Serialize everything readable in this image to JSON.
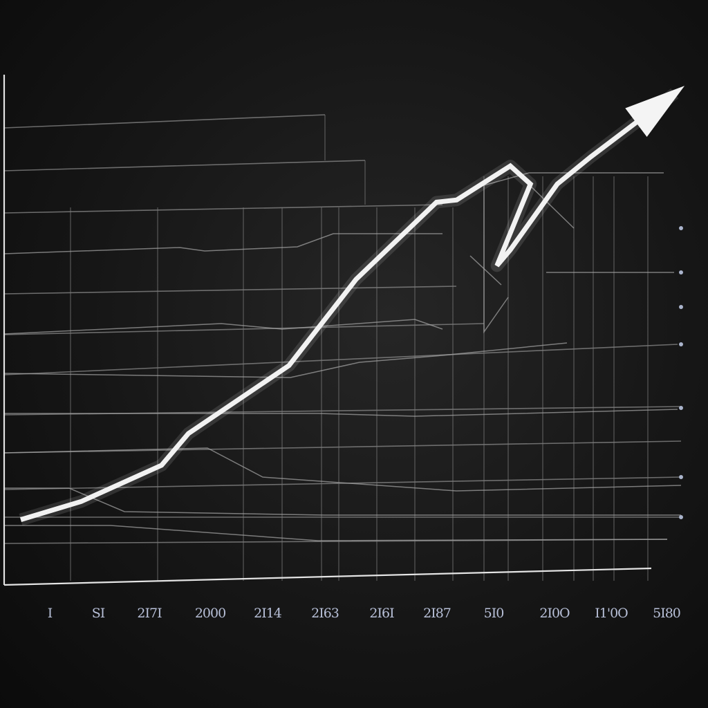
{
  "chart_data": {
    "type": "line",
    "title": "",
    "xlabel": "",
    "ylabel": "",
    "grid": true,
    "legend": "none",
    "x_tick_labels": [
      "I",
      "SI",
      "2I7I",
      "2000",
      "2I14",
      "2I63",
      "2I6I",
      "2I87",
      "5I0",
      "2I0O",
      "I1'0O",
      "5I80"
    ],
    "ylim": [
      0,
      100
    ],
    "series": [
      {
        "x": [
          0,
          9,
          21,
          25,
          40,
          50,
          62,
          65,
          73,
          76,
          71,
          73,
          80,
          85,
          97.5
        ],
        "values": [
          6,
          10,
          18,
          25,
          40,
          59,
          76,
          76.5,
          84,
          80,
          62,
          65.5,
          80,
          86,
          100
        ],
        "style": "bold-white-with-arrow"
      }
    ],
    "colors": {
      "background": "#161616",
      "main_line": "#f2f2f2",
      "grid": "#8a8a8a",
      "tick_text": "#b8c0d8"
    }
  }
}
